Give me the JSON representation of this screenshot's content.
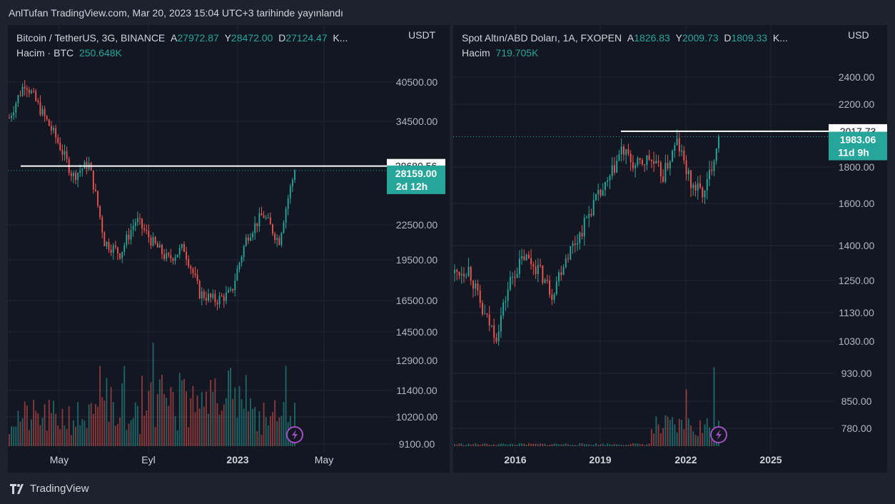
{
  "header": "AnlTufan TradingView.com, Mar 20, 2023 15:04 UTC+3 tarihinde yayınlandı",
  "footer": {
    "brand": "TradingView",
    "logo_icon": "tradingview-logo-icon"
  },
  "colors": {
    "up": "#26a69a",
    "down": "#ef5350",
    "bg": "#131722",
    "grid": "#1e222d",
    "text": "#d1d4dc",
    "accent_icon": "#a54fc4"
  },
  "chart_data": [
    {
      "type": "candlestick",
      "symbol_line": "Bitcoin / TetherUS, 3G, BINANCE",
      "ohlc": {
        "o_label": "A",
        "o": "27972.87",
        "h_label": "Y",
        "h": "28472.00",
        "l_label": "D",
        "l": "27124.47",
        "c_label": "K..."
      },
      "volume_label": "Hacim · BTC",
      "volume_value": "250.648K",
      "currency": "USDT",
      "y_ticks": [
        "40500.00",
        "34500.00",
        "22500.00",
        "19500.00",
        "16500.00",
        "14500.00",
        "12900.00",
        "11400.00",
        "10200.00",
        "9100.00"
      ],
      "x_ticks": [
        "May",
        "Eyl",
        "2023",
        "May"
      ],
      "price_tags": [
        {
          "label": "28680.56",
          "style": "white",
          "value": 28680.56
        },
        {
          "label": "28159.00",
          "sub": "2d 12h",
          "style": "green",
          "value": 28159
        }
      ],
      "hline": 28680.56,
      "last": 28159,
      "log_scale": true,
      "series": [],
      "volume": []
    },
    {
      "type": "candlestick",
      "symbol_line": "Spot Altın/ABD Doları, 1A, FXOPEN",
      "ohlc": {
        "o_label": "A",
        "o": "1826.83",
        "h_label": "Y",
        "h": "2009.73",
        "l_label": "D",
        "l": "1809.33",
        "c_label": "K..."
      },
      "volume_label": "Hacim",
      "volume_value": "719.705K",
      "currency": "USD",
      "y_ticks": [
        "2400.00",
        "2200.00",
        "1800.00",
        "1600.00",
        "1400.00",
        "1250.00",
        "1130.00",
        "1030.00",
        "930.00",
        "850.00",
        "780.00"
      ],
      "x_ticks": [
        "2016",
        "2019",
        "2022",
        "2025"
      ],
      "price_tags": [
        {
          "label": "2017.73",
          "style": "white",
          "value": 2017.73
        },
        {
          "label": "1983.06",
          "sub": "11d 9h",
          "style": "green",
          "value": 1983.06
        }
      ],
      "hline": 2017.73,
      "last": 1983.06,
      "log_scale": true,
      "series": [],
      "volume": []
    }
  ]
}
